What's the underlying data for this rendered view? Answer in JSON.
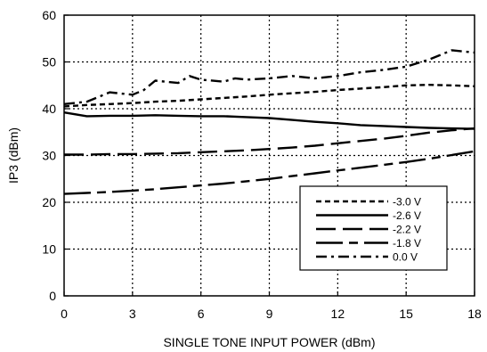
{
  "chart_data": {
    "type": "line",
    "title": "",
    "xlabel": "SINGLE TONE INPUT POWER (dBm)",
    "ylabel": "IP3 (dBm)",
    "xlim": [
      0,
      18
    ],
    "ylim": [
      0,
      60
    ],
    "xticks": [
      0,
      3,
      6,
      9,
      12,
      15,
      18
    ],
    "xtick_labels": [
      "0",
      "3",
      "6",
      "9",
      "12",
      "15",
      "18"
    ],
    "yticks": [
      0,
      10,
      20,
      30,
      40,
      50,
      60
    ],
    "ytick_labels": [
      "0",
      "10",
      "20",
      "30",
      "40",
      "50",
      "60"
    ],
    "grid": true,
    "legend_position": "bottom-right",
    "series": [
      {
        "name": "-3.0 V",
        "style": "short-dash",
        "x": [
          0,
          1,
          2,
          3,
          4,
          5,
          6,
          7,
          8,
          9,
          10,
          11,
          12,
          13,
          14,
          15,
          16,
          17,
          18
        ],
        "y": [
          40.5,
          40.8,
          41.0,
          41.2,
          41.5,
          41.7,
          42.0,
          42.3,
          42.6,
          43.0,
          43.3,
          43.6,
          44.0,
          44.3,
          44.6,
          45.0,
          45.1,
          45.0,
          44.8
        ]
      },
      {
        "name": "-2.6 V",
        "style": "solid",
        "x": [
          0,
          1,
          2,
          3,
          4,
          5,
          6,
          7,
          8,
          9,
          10,
          11,
          12,
          13,
          14,
          15,
          16,
          17,
          18
        ],
        "y": [
          39.2,
          38.4,
          38.5,
          38.5,
          38.6,
          38.5,
          38.4,
          38.4,
          38.2,
          38.0,
          37.6,
          37.2,
          36.9,
          36.5,
          36.3,
          36.1,
          35.9,
          35.8,
          35.7
        ]
      },
      {
        "name": "-2.2 V",
        "style": "long-dash",
        "x": [
          0,
          1,
          2,
          3,
          4,
          5,
          6,
          7,
          8,
          9,
          10,
          11,
          12,
          13,
          14,
          15,
          16,
          17,
          18
        ],
        "y": [
          30.2,
          30.2,
          30.3,
          30.3,
          30.4,
          30.5,
          30.7,
          30.9,
          31.1,
          31.4,
          31.7,
          32.1,
          32.6,
          33.1,
          33.6,
          34.2,
          34.9,
          35.4,
          35.8
        ]
      },
      {
        "name": "-1.8 V",
        "style": "long-dash-short",
        "x": [
          0,
          1,
          2,
          3,
          4,
          5,
          6,
          7,
          8,
          9,
          10,
          11,
          12,
          13,
          14,
          15,
          16,
          17,
          18
        ],
        "y": [
          21.8,
          22.0,
          22.2,
          22.5,
          22.8,
          23.2,
          23.6,
          24.0,
          24.5,
          25.0,
          25.6,
          26.2,
          26.8,
          27.4,
          28.0,
          28.6,
          29.3,
          30.1,
          30.9
        ]
      },
      {
        "name": "0.0 V",
        "style": "dash-dot",
        "x": [
          0,
          1,
          1.5,
          2,
          3,
          3.5,
          4,
          5,
          5.5,
          6,
          7,
          7.5,
          8,
          9,
          10,
          11,
          12,
          13,
          14,
          15,
          16,
          17,
          18
        ],
        "y": [
          41.0,
          41.5,
          42.5,
          43.5,
          43.0,
          44.0,
          46.0,
          45.5,
          47.0,
          46.2,
          45.8,
          46.5,
          46.2,
          46.5,
          47.0,
          46.5,
          47.0,
          47.8,
          48.3,
          49.0,
          50.5,
          52.5,
          52.0
        ]
      }
    ]
  }
}
